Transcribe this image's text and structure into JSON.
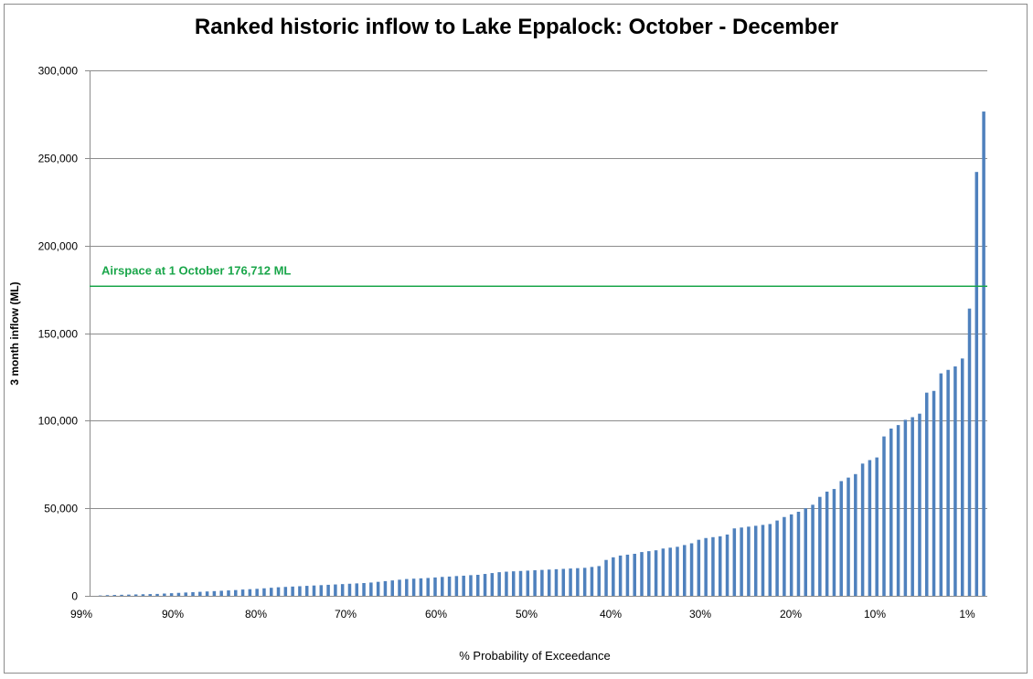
{
  "chart_data": {
    "type": "bar",
    "title": "Ranked historic inflow to Lake Eppalock: October - December",
    "xlabel": "% Probability of Exceedance",
    "ylabel": "3 month inflow (ML)",
    "ylim": [
      0,
      300000
    ],
    "yticks": [
      0,
      50000,
      100000,
      150000,
      200000,
      250000,
      300000
    ],
    "ytick_labels": [
      "0",
      "50,000",
      "100,000",
      "150,000",
      "200,000",
      "250,000",
      "300,000"
    ],
    "xtick_labels": [
      "99%",
      "90%",
      "80%",
      "70%",
      "60%",
      "50%",
      "40%",
      "30%",
      "20%",
      "10%",
      "1%"
    ],
    "grid": true,
    "bar_color": "#4f81bd",
    "reference_line": {
      "label": "Airspace at 1 October 176,712 ML",
      "value": 176712,
      "color": "#1aa64a"
    },
    "values": [
      0,
      200,
      400,
      500,
      600,
      700,
      800,
      900,
      1000,
      1100,
      1300,
      1500,
      1700,
      1900,
      2100,
      2300,
      2500,
      2700,
      2900,
      3100,
      3300,
      3600,
      3800,
      4000,
      4300,
      4600,
      4900,
      5100,
      5300,
      5500,
      5700,
      5900,
      6100,
      6300,
      6500,
      6700,
      6900,
      7100,
      7300,
      7600,
      8000,
      8400,
      8800,
      9200,
      9600,
      9800,
      10000,
      10200,
      10500,
      10800,
      11000,
      11300,
      11500,
      11800,
      12000,
      12500,
      13000,
      13500,
      13800,
      14000,
      14200,
      14400,
      14600,
      14800,
      15000,
      15200,
      15400,
      15600,
      15800,
      16000,
      16500,
      17000,
      20500,
      22000,
      23000,
      23500,
      24000,
      25000,
      25500,
      26000,
      27000,
      27500,
      28000,
      29000,
      30000,
      32000,
      33000,
      33500,
      34000,
      35000,
      38500,
      39000,
      39500,
      40000,
      40500,
      41000,
      43000,
      45000,
      46500,
      48000,
      50000,
      52000,
      56500,
      59500,
      61000,
      65500,
      67500,
      69500,
      75500,
      77500,
      79000,
      91000,
      95500,
      97500,
      100500,
      102000,
      104000,
      116000,
      117000,
      127000,
      129000,
      131000,
      135500,
      164000,
      242000,
      276500
    ]
  }
}
